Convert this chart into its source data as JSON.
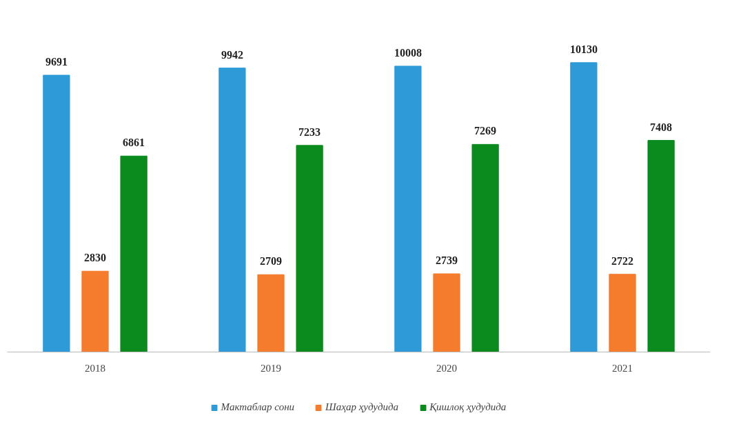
{
  "chart_data": {
    "type": "bar",
    "categories": [
      "2018",
      "2019",
      "2020",
      "2021"
    ],
    "series": [
      {
        "name": "Мактаблар сони",
        "color": "#2e9ad8",
        "values": [
          9691,
          9942,
          10008,
          10130
        ]
      },
      {
        "name": "Шаҳар ҳудудида",
        "color": "#f47c2c",
        "values": [
          2830,
          2709,
          2739,
          2722
        ]
      },
      {
        "name": "Қишлоқ ҳудудида",
        "color": "#0b8a1e",
        "values": [
          6861,
          7233,
          7269,
          7408
        ]
      }
    ],
    "data_labels": true,
    "legend": "bottom",
    "grid": false,
    "tick_labels": "x"
  }
}
